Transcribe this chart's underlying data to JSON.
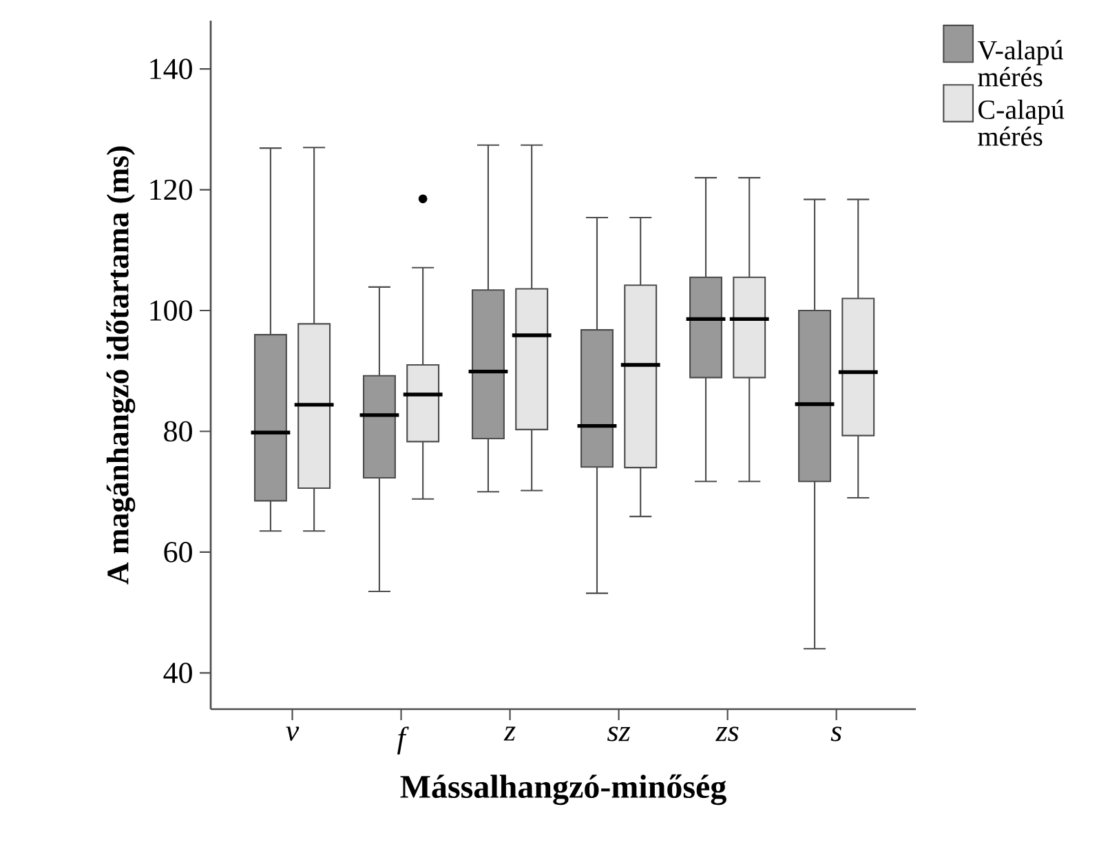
{
  "chart_data": {
    "type": "box",
    "xlabel": "Mássalhangzó-minőség",
    "ylabel": "A magánhangzó időtartama (ms)",
    "categories": [
      "v",
      "f",
      "z",
      "sz",
      "zs",
      "s"
    ],
    "ylim": [
      34,
      148
    ],
    "yticks": [
      40,
      60,
      80,
      100,
      120,
      140
    ],
    "grid": false,
    "legend": "top right",
    "marker": "circle",
    "series": [
      {
        "name": "V-alapú mérés",
        "color": "#999999",
        "boxes": [
          {
            "low": 63.5,
            "q1": 68.5,
            "median": 79.8,
            "q3": 96.0,
            "high": 126.9
          },
          {
            "low": 53.5,
            "q1": 72.3,
            "median": 82.7,
            "q3": 89.2,
            "high": 103.9
          },
          {
            "low": 70.0,
            "q1": 78.8,
            "median": 89.9,
            "q3": 103.4,
            "high": 127.4
          },
          {
            "low": 53.2,
            "q1": 74.1,
            "median": 80.9,
            "q3": 96.8,
            "high": 115.4
          },
          {
            "low": 71.7,
            "q1": 88.9,
            "median": 98.6,
            "q3": 105.5,
            "high": 122.0
          },
          {
            "low": 44.0,
            "q1": 71.7,
            "median": 84.5,
            "q3": 100.0,
            "high": 118.4
          }
        ]
      },
      {
        "name": "C-alapú mérés",
        "color": "#e5e5e5",
        "boxes": [
          {
            "low": 63.5,
            "q1": 70.6,
            "median": 84.4,
            "q3": 97.8,
            "high": 127.0
          },
          {
            "low": 68.8,
            "q1": 78.3,
            "median": 86.1,
            "q3": 91.0,
            "high": 107.1,
            "outliers": [
              118.5
            ]
          },
          {
            "low": 70.2,
            "q1": 80.3,
            "median": 95.9,
            "q3": 103.6,
            "high": 127.4
          },
          {
            "low": 65.9,
            "q1": 74.0,
            "median": 91.0,
            "q3": 104.2,
            "high": 115.4
          },
          {
            "low": 71.7,
            "q1": 88.9,
            "median": 98.6,
            "q3": 105.5,
            "high": 122.0
          },
          {
            "low": 69.0,
            "q1": 79.3,
            "median": 89.8,
            "q3": 102.0,
            "high": 118.4
          }
        ]
      }
    ]
  }
}
